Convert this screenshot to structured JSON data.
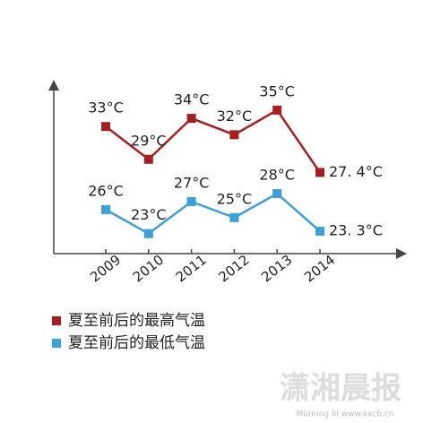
{
  "chart_data": {
    "type": "line",
    "categories": [
      "2009",
      "2010",
      "2011",
      "2012",
      "2013",
      "2014"
    ],
    "series": [
      {
        "name": "夏至前后的最高气温",
        "color": "#a51e22",
        "values": [
          33,
          29,
          34,
          32,
          35,
          27.4
        ],
        "value_labels": [
          "33°C",
          "29°C",
          "34°C",
          "32°C",
          "35°C",
          "27. 4°C"
        ]
      },
      {
        "name": "夏至前后的最低气温",
        "color": "#3fa0d8",
        "axis": "y2",
        "values": [
          26,
          23,
          27,
          25,
          28,
          23.3
        ],
        "value_labels": [
          "26°C",
          "23°C",
          "27°C",
          "25°C",
          "28°C",
          "23. 3°C"
        ]
      }
    ],
    "ylim": [
      17.5,
      37.5
    ],
    "y2lim": [
      20.5,
      41
    ],
    "grid": false
  },
  "watermark": {
    "title": "潇湘晨报",
    "subtitle": "Morning III www.xxcb.cn"
  }
}
